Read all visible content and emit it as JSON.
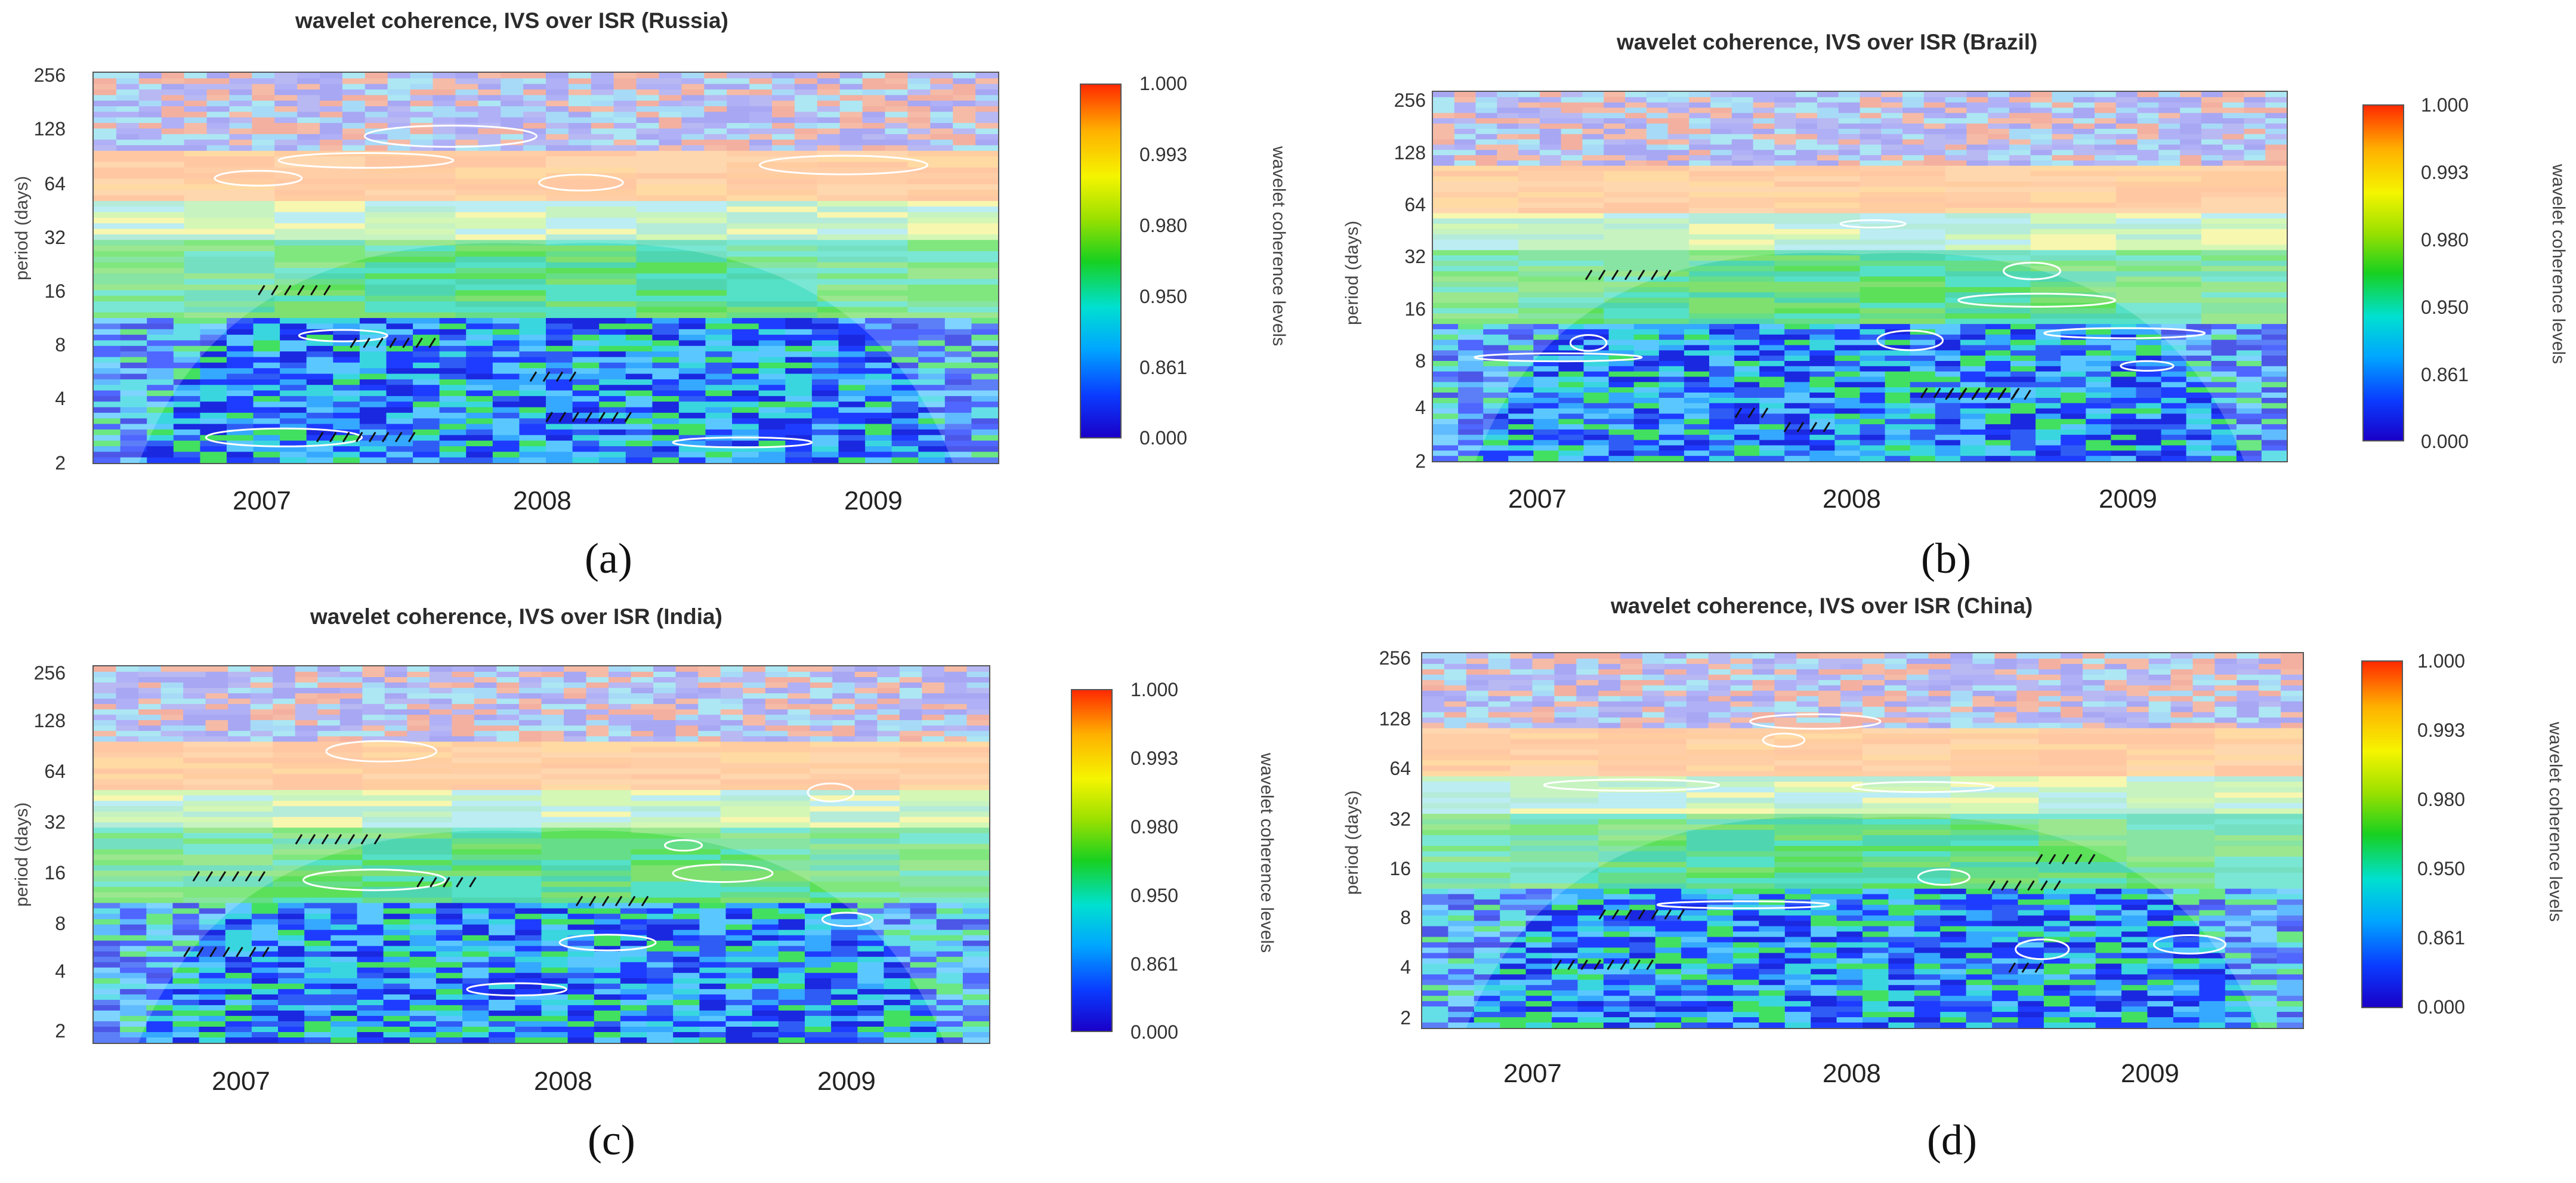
{
  "panels": [
    {
      "id": "a",
      "title": "wavelet coherence, IVS over ISR (Russia)",
      "label": "(a)"
    },
    {
      "id": "b",
      "title": "wavelet coherence, IVS over ISR (Brazil)",
      "label": "(b)"
    },
    {
      "id": "c",
      "title": "wavelet coherence, IVS over ISR (India)",
      "label": "(c)"
    },
    {
      "id": "d",
      "title": "wavelet coherence, IVS over ISR (China)",
      "label": "(d)"
    }
  ],
  "axis": {
    "ylabel": "period (days)",
    "yticks": [
      "256",
      "128",
      "64",
      "32",
      "16",
      "8",
      "4",
      "2"
    ],
    "xticks": [
      "2007",
      "2008",
      "2009"
    ],
    "colorbar_label": "wavelet coherence levels",
    "colorbar_ticks": [
      "1.000",
      "0.993",
      "0.980",
      "0.950",
      "0.861",
      "0.000"
    ]
  },
  "chart_data": [
    {
      "type": "heatmap",
      "panel": "a",
      "title": "wavelet coherence, IVS over ISR (Russia)",
      "xlabel": "",
      "ylabel": "period (days)",
      "x_ticks": [
        "2007",
        "2008",
        "2009"
      ],
      "y_ticks": [
        256,
        128,
        64,
        32,
        16,
        8,
        4,
        2
      ],
      "colorbar": {
        "label": "wavelet coherence levels",
        "levels": [
          0.0,
          0.861,
          0.95,
          0.98,
          0.993,
          1.0
        ]
      }
    },
    {
      "type": "heatmap",
      "panel": "b",
      "title": "wavelet coherence, IVS over ISR (Brazil)",
      "xlabel": "",
      "ylabel": "period (days)",
      "x_ticks": [
        "2007",
        "2008",
        "2009"
      ],
      "y_ticks": [
        256,
        128,
        64,
        32,
        16,
        8,
        4,
        2
      ],
      "colorbar": {
        "label": "wavelet coherence levels",
        "levels": [
          0.0,
          0.861,
          0.95,
          0.98,
          0.993,
          1.0
        ]
      }
    },
    {
      "type": "heatmap",
      "panel": "c",
      "title": "wavelet coherence, IVS over ISR (India)",
      "xlabel": "",
      "ylabel": "period (days)",
      "x_ticks": [
        "2007",
        "2008",
        "2009"
      ],
      "y_ticks": [
        256,
        128,
        64,
        32,
        16,
        8,
        4,
        2
      ],
      "colorbar": {
        "label": "wavelet coherence levels",
        "levels": [
          0.0,
          0.861,
          0.95,
          0.98,
          0.993,
          1.0
        ]
      }
    },
    {
      "type": "heatmap",
      "panel": "d",
      "title": "wavelet coherence, IVS over ISR (China)",
      "xlabel": "",
      "ylabel": "period (days)",
      "x_ticks": [
        "2007",
        "2008",
        "2009"
      ],
      "y_ticks": [
        256,
        128,
        64,
        32,
        16,
        8,
        4,
        2
      ],
      "colorbar": {
        "label": "wavelet coherence levels",
        "levels": [
          0.0,
          0.861,
          0.95,
          0.98,
          0.993,
          1.0
        ]
      }
    }
  ]
}
